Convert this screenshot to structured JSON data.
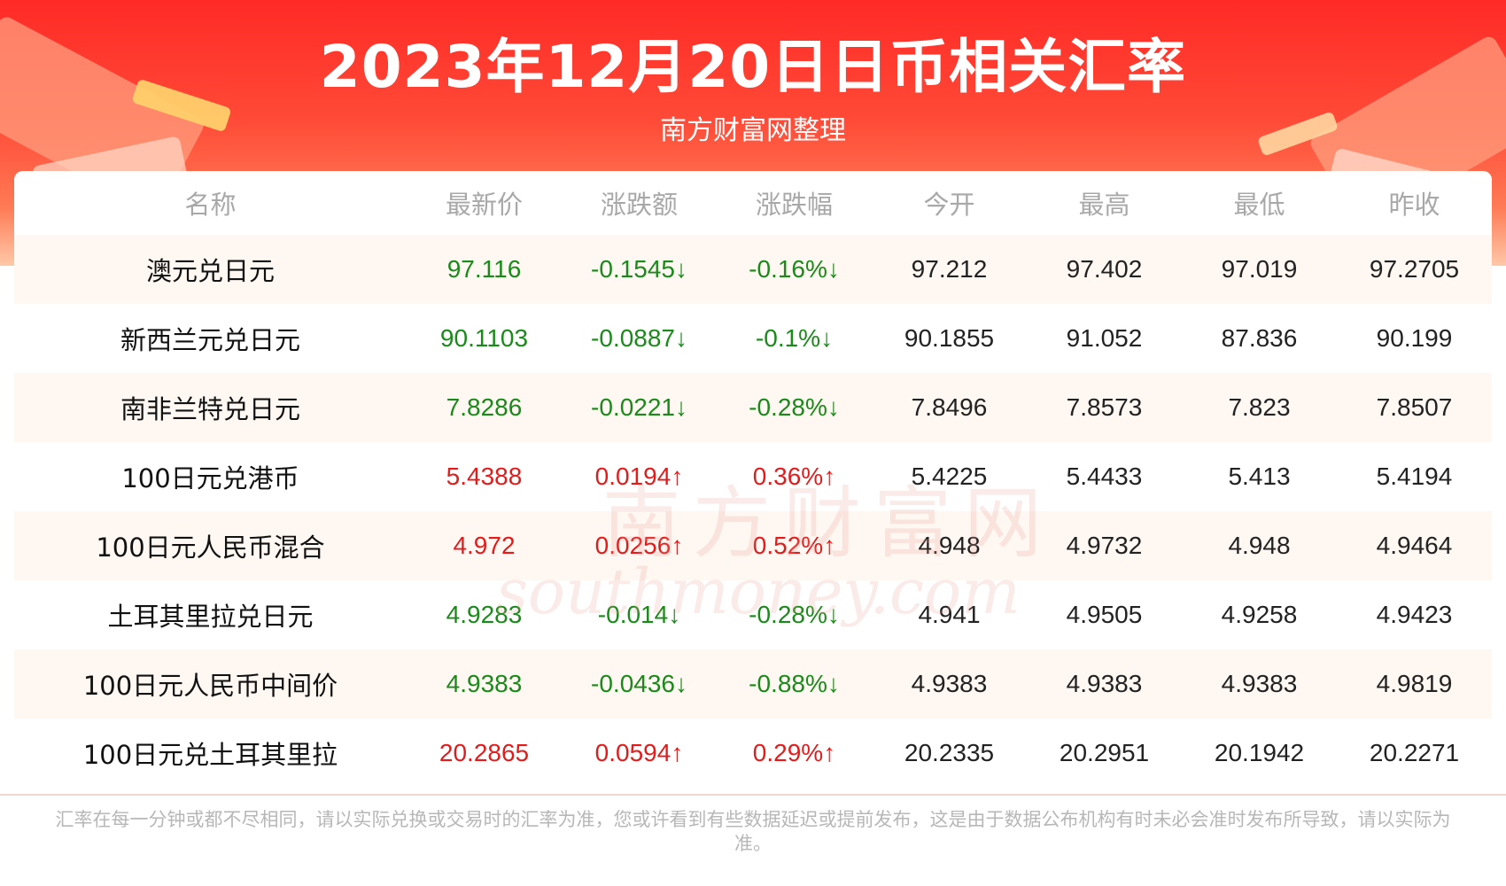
{
  "header": {
    "title": "2023年12月20日日币相关汇率",
    "subtitle": "南方财富网整理"
  },
  "table": {
    "columns": [
      "名称",
      "最新价",
      "涨跌额",
      "涨跌幅",
      "今开",
      "最高",
      "最低",
      "昨收"
    ],
    "rows": [
      {
        "name": "澳元兑日元",
        "latest": "97.116",
        "change": "-0.1545↓",
        "change_pct": "-0.16%↓",
        "open": "97.212",
        "high": "97.402",
        "low": "97.019",
        "prev_close": "97.2705",
        "trend": "down"
      },
      {
        "name": "新西兰元兑日元",
        "latest": "90.1103",
        "change": "-0.0887↓",
        "change_pct": "-0.1%↓",
        "open": "90.1855",
        "high": "91.052",
        "low": "87.836",
        "prev_close": "90.199",
        "trend": "down"
      },
      {
        "name": "南非兰特兑日元",
        "latest": "7.8286",
        "change": "-0.0221↓",
        "change_pct": "-0.28%↓",
        "open": "7.8496",
        "high": "7.8573",
        "low": "7.823",
        "prev_close": "7.8507",
        "trend": "down"
      },
      {
        "name": "100日元兑港币",
        "latest": "5.4388",
        "change": "0.0194↑",
        "change_pct": "0.36%↑",
        "open": "5.4225",
        "high": "5.4433",
        "low": "5.413",
        "prev_close": "5.4194",
        "trend": "up"
      },
      {
        "name": "100日元人民币混合",
        "latest": "4.972",
        "change": "0.0256↑",
        "change_pct": "0.52%↑",
        "open": "4.948",
        "high": "4.9732",
        "low": "4.948",
        "prev_close": "4.9464",
        "trend": "up"
      },
      {
        "name": "土耳其里拉兑日元",
        "latest": "4.9283",
        "change": "-0.014↓",
        "change_pct": "-0.28%↓",
        "open": "4.941",
        "high": "4.9505",
        "low": "4.9258",
        "prev_close": "4.9423",
        "trend": "down"
      },
      {
        "name": "100日元人民币中间价",
        "latest": "4.9383",
        "change": "-0.0436↓",
        "change_pct": "-0.88%↓",
        "open": "4.9383",
        "high": "4.9383",
        "low": "4.9383",
        "prev_close": "4.9819",
        "trend": "down"
      },
      {
        "name": "100日元兑土耳其里拉",
        "latest": "20.2865",
        "change": "0.0594↑",
        "change_pct": "0.29%↑",
        "open": "20.2335",
        "high": "20.2951",
        "low": "20.1942",
        "prev_close": "20.2271",
        "trend": "up"
      }
    ]
  },
  "watermark": {
    "cn": "南方财富网",
    "en": "southmoney.com"
  },
  "footnote": "汇率在每一分钟或都不尽相同，请以实际兑换或交易时的汇率为准，您或许看到有些数据延迟或提前发布，这是由于数据公布机构有时未必会准时发布所导致，请以实际为准。",
  "colors": {
    "up": "#e41b1b",
    "down": "#1a8a1a",
    "header_bg": "#ff2a26"
  }
}
